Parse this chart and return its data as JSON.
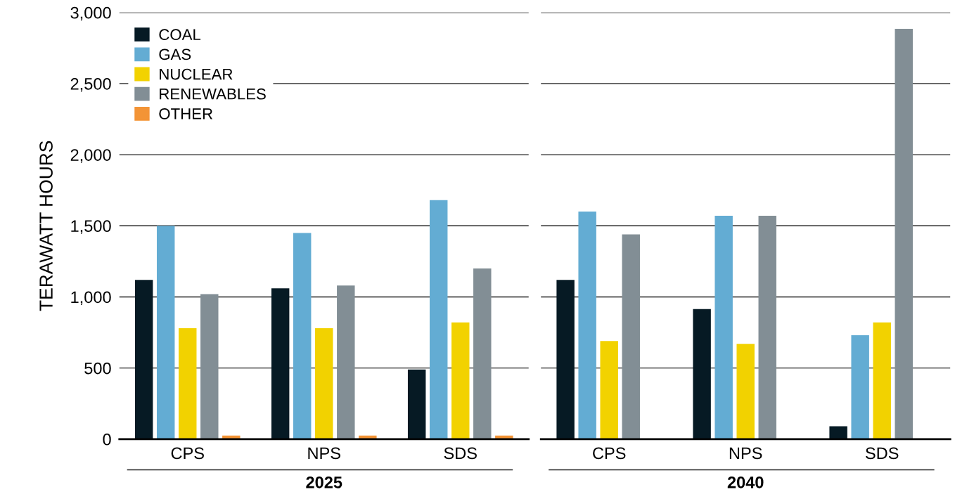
{
  "chart_data": [
    {
      "type": "bar",
      "xlabel": "2025",
      "ylabel": "TERAWATT HOURS",
      "categories": [
        "CPS",
        "NPS",
        "SDS"
      ],
      "ylim": [
        0,
        3000
      ],
      "yticks": [
        {
          "value": 0,
          "label": "0"
        },
        {
          "value": 500,
          "label": "500"
        },
        {
          "value": 1000,
          "label": "1,000"
        },
        {
          "value": 1500,
          "label": "1,500"
        },
        {
          "value": 2000,
          "label": "2,000"
        },
        {
          "value": 2500,
          "label": "2,500"
        },
        {
          "value": 3000,
          "label": "3,000"
        }
      ],
      "grid": "y",
      "legend": "top left",
      "series": [
        {
          "name": "COAL",
          "color": "#061a24",
          "values": [
            1120,
            1060,
            490
          ]
        },
        {
          "name": "GAS",
          "color": "#63acd3",
          "values": [
            1500,
            1450,
            1680
          ]
        },
        {
          "name": "NUCLEAR",
          "color": "#f2d200",
          "values": [
            780,
            780,
            820
          ]
        },
        {
          "name": "RENEWABLES",
          "color": "#828e95",
          "values": [
            1020,
            1080,
            1200
          ]
        },
        {
          "name": "OTHER",
          "color": "#f39436",
          "values": [
            25,
            25,
            25
          ]
        }
      ]
    },
    {
      "type": "bar",
      "xlabel": "2040",
      "categories": [
        "CPS",
        "NPS",
        "SDS"
      ],
      "ylim": [
        0,
        3000
      ],
      "yticks": [
        0,
        500,
        1000,
        1500,
        2000,
        2500,
        3000
      ],
      "grid": "y",
      "tick_labels": "x",
      "series": [
        {
          "color": "#061a24",
          "values": [
            1120,
            915,
            90
          ]
        },
        {
          "color": "#63acd3",
          "values": [
            1600,
            1570,
            730
          ]
        },
        {
          "color": "#f2d200",
          "values": [
            690,
            670,
            820
          ]
        },
        {
          "color": "#828e95",
          "values": [
            1440,
            1570,
            2885
          ]
        },
        {
          "color": "#f39436",
          "values": [
            null,
            null,
            null
          ]
        }
      ]
    }
  ]
}
